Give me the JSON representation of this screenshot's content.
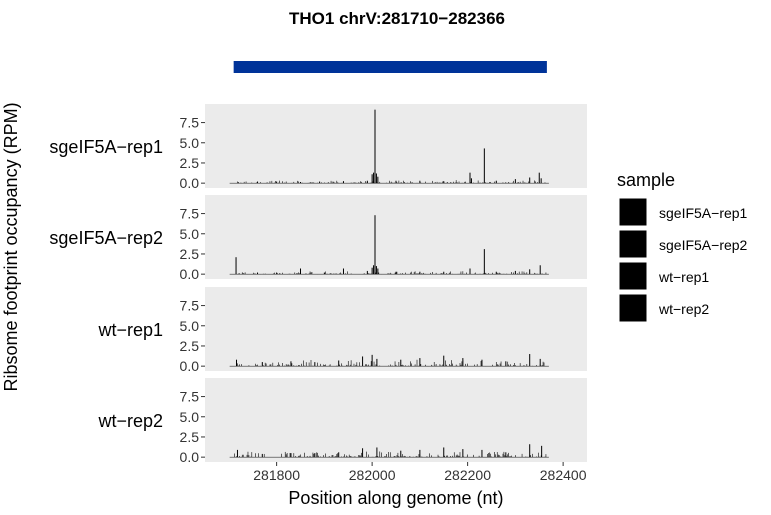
{
  "chart_data": {
    "type": "bar",
    "title": "THO1 chrV:281710−282366",
    "xlabel": "Position along genome (nt)",
    "ylabel": "Ribsome footprint occupancy (RPM)",
    "xlim": [
      281650,
      282450
    ],
    "ylim": [
      -0.6,
      9.8
    ],
    "x_ticks": [
      281800,
      282000,
      282200,
      282400
    ],
    "x_tick_labels": [
      "281800",
      "282000",
      "282200",
      "282400"
    ],
    "y_ticks": [
      0,
      2.5,
      5,
      7.5
    ],
    "y_tick_labels": [
      "0.0",
      "2.5",
      "5.0",
      "7.5"
    ],
    "gene_track": {
      "start": 281710,
      "end": 282366,
      "color": "#003399"
    },
    "panel_background": "#ebebeb",
    "grid": false,
    "bar_color": "#000000",
    "legend": {
      "title": "sample",
      "position": "right",
      "entries": [
        "sgeIF5A−rep1",
        "sgeIF5A−rep2",
        "wt−rep1",
        "wt−rep2"
      ]
    },
    "series": [
      {
        "name": "sgeIF5A−rep1",
        "peaks": [
          {
            "x": 281720,
            "y": 0.1
          },
          {
            "x": 281760,
            "y": 0.2
          },
          {
            "x": 281800,
            "y": 0.2
          },
          {
            "x": 281850,
            "y": 0.15
          },
          {
            "x": 281890,
            "y": 0.2
          },
          {
            "x": 281940,
            "y": 0.25
          },
          {
            "x": 281990,
            "y": 0.3
          },
          {
            "x": 282000,
            "y": 1.1
          },
          {
            "x": 282003,
            "y": 1.3
          },
          {
            "x": 282006,
            "y": 9.1
          },
          {
            "x": 282009,
            "y": 1.2
          },
          {
            "x": 282012,
            "y": 0.8
          },
          {
            "x": 282050,
            "y": 0.3
          },
          {
            "x": 282100,
            "y": 0.3
          },
          {
            "x": 282150,
            "y": 0.25
          },
          {
            "x": 282205,
            "y": 1.3
          },
          {
            "x": 282208,
            "y": 0.6
          },
          {
            "x": 282235,
            "y": 4.3
          },
          {
            "x": 282260,
            "y": 0.3
          },
          {
            "x": 282300,
            "y": 0.5
          },
          {
            "x": 282330,
            "y": 0.7
          },
          {
            "x": 282350,
            "y": 1.3
          },
          {
            "x": 282354,
            "y": 0.6
          }
        ]
      },
      {
        "name": "sgeIF5A−rep2",
        "peaks": [
          {
            "x": 281715,
            "y": 2.1
          },
          {
            "x": 281760,
            "y": 0.2
          },
          {
            "x": 281800,
            "y": 0.2
          },
          {
            "x": 281850,
            "y": 0.7
          },
          {
            "x": 281900,
            "y": 0.2
          },
          {
            "x": 281940,
            "y": 0.7
          },
          {
            "x": 281990,
            "y": 0.4
          },
          {
            "x": 282000,
            "y": 0.8
          },
          {
            "x": 282003,
            "y": 1.1
          },
          {
            "x": 282006,
            "y": 7.3
          },
          {
            "x": 282009,
            "y": 1.0
          },
          {
            "x": 282012,
            "y": 0.7
          },
          {
            "x": 282050,
            "y": 0.3
          },
          {
            "x": 282100,
            "y": 0.3
          },
          {
            "x": 282150,
            "y": 0.3
          },
          {
            "x": 282205,
            "y": 0.7
          },
          {
            "x": 282235,
            "y": 3.1
          },
          {
            "x": 282260,
            "y": 0.3
          },
          {
            "x": 282300,
            "y": 0.4
          },
          {
            "x": 282330,
            "y": 0.6
          },
          {
            "x": 282352,
            "y": 1.1
          }
        ]
      },
      {
        "name": "wt−rep1",
        "peaks": [
          {
            "x": 281716,
            "y": 0.8
          },
          {
            "x": 281770,
            "y": 0.5
          },
          {
            "x": 281830,
            "y": 0.6
          },
          {
            "x": 281880,
            "y": 0.5
          },
          {
            "x": 281930,
            "y": 0.7
          },
          {
            "x": 281980,
            "y": 1.2
          },
          {
            "x": 282000,
            "y": 1.4
          },
          {
            "x": 282010,
            "y": 0.9
          },
          {
            "x": 282060,
            "y": 0.8
          },
          {
            "x": 282100,
            "y": 1.0
          },
          {
            "x": 282150,
            "y": 1.3
          },
          {
            "x": 282190,
            "y": 1.0
          },
          {
            "x": 282230,
            "y": 0.8
          },
          {
            "x": 282280,
            "y": 0.6
          },
          {
            "x": 282330,
            "y": 1.5
          },
          {
            "x": 282352,
            "y": 0.9
          }
        ]
      },
      {
        "name": "wt−rep2",
        "peaks": [
          {
            "x": 281718,
            "y": 0.9
          },
          {
            "x": 281770,
            "y": 0.4
          },
          {
            "x": 281830,
            "y": 0.5
          },
          {
            "x": 281880,
            "y": 0.5
          },
          {
            "x": 281930,
            "y": 0.6
          },
          {
            "x": 281980,
            "y": 1.1
          },
          {
            "x": 282010,
            "y": 1.2
          },
          {
            "x": 282060,
            "y": 0.8
          },
          {
            "x": 282100,
            "y": 0.9
          },
          {
            "x": 282150,
            "y": 1.2
          },
          {
            "x": 282190,
            "y": 1.0
          },
          {
            "x": 282230,
            "y": 0.9
          },
          {
            "x": 282280,
            "y": 0.6
          },
          {
            "x": 282330,
            "y": 1.6
          },
          {
            "x": 282355,
            "y": 1.4
          }
        ]
      }
    ]
  }
}
